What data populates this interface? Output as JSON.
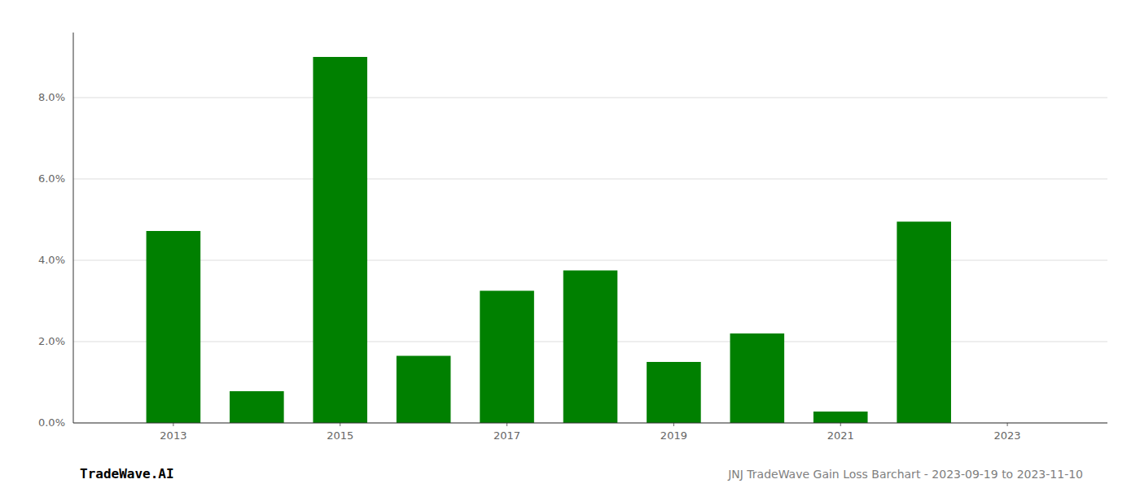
{
  "chart_data": {
    "type": "bar",
    "x": [
      2013,
      2014,
      2015,
      2016,
      2017,
      2018,
      2019,
      2020,
      2021,
      2022,
      2023
    ],
    "values": [
      0.0472,
      0.0078,
      0.09,
      0.0165,
      0.0325,
      0.0375,
      0.015,
      0.022,
      0.0028,
      0.0495,
      0.0
    ],
    "color": "#008000",
    "xlim": [
      2011.8,
      2024.2
    ],
    "xticks": [
      2013,
      2015,
      2017,
      2019,
      2021,
      2023
    ],
    "ylim": [
      0,
      0.096
    ],
    "yticks": [
      {
        "value": 0.0,
        "label": "0.0%"
      },
      {
        "value": 0.02,
        "label": "2.0%"
      },
      {
        "value": 0.04,
        "label": "4.0%"
      },
      {
        "value": 0.06,
        "label": "6.0%"
      },
      {
        "value": 0.08,
        "label": "8.0%"
      }
    ],
    "grid": true,
    "annotations": [
      "TradeWave.AI",
      "JNJ TradeWave Gain Loss Barchart - 2023-09-19 to 2023-11-10"
    ]
  }
}
